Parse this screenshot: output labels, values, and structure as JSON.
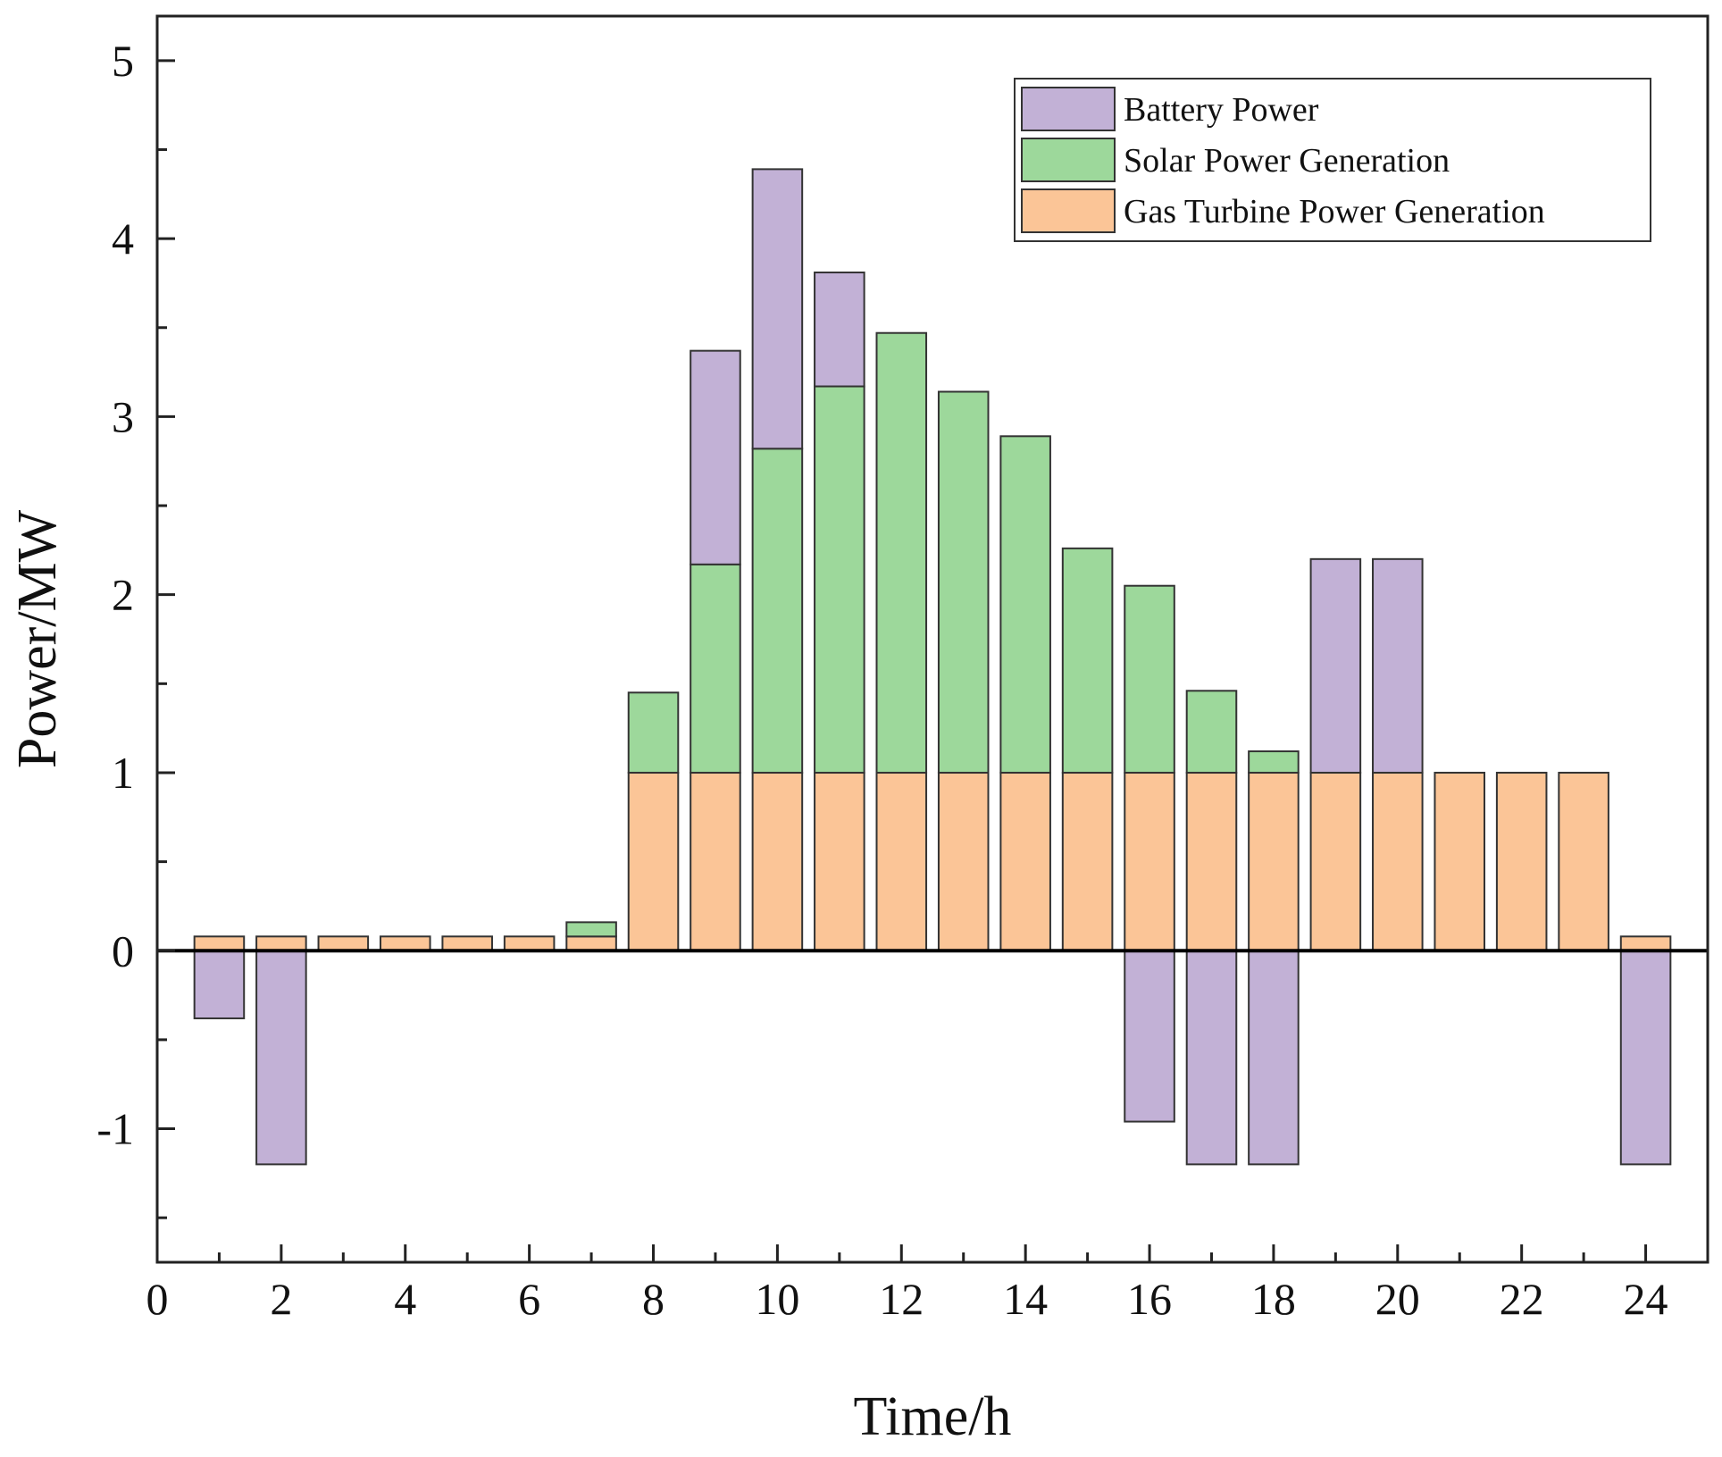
{
  "chart_data": {
    "type": "bar",
    "stacked": true,
    "x": [
      1,
      2,
      3,
      4,
      5,
      6,
      7,
      8,
      9,
      10,
      11,
      12,
      13,
      14,
      15,
      16,
      17,
      18,
      19,
      20,
      21,
      22,
      23,
      24
    ],
    "series": [
      {
        "name": "Gas Turbine Power Generation",
        "color": "#fbc597",
        "values": [
          0.08,
          0.08,
          0.08,
          0.08,
          0.08,
          0.08,
          0.08,
          1,
          1,
          1,
          1,
          1,
          1,
          1,
          1,
          1,
          1,
          1,
          1,
          1,
          1,
          1,
          1,
          0.08
        ]
      },
      {
        "name": "Solar Power Generation",
        "color": "#9dd89b",
        "values": [
          0,
          0,
          0,
          0,
          0,
          0,
          0.08,
          0.45,
          1.17,
          1.82,
          2.17,
          2.47,
          2.14,
          1.89,
          1.26,
          1.05,
          0.46,
          0.12,
          0,
          0,
          0,
          0,
          0,
          0
        ]
      },
      {
        "name": "Battery Power",
        "color": "#c2b1d6",
        "values": [
          -0.38,
          -1.2,
          0,
          0,
          0,
          0,
          0,
          0,
          1.2,
          1.57,
          0.64,
          0,
          0,
          0,
          0,
          -0.96,
          -1.2,
          -1.2,
          1.2,
          1.2,
          0,
          0,
          0,
          -1.2
        ]
      }
    ],
    "xlabel": "Time/h",
    "ylabel": "Power/MW",
    "xlim": [
      0,
      25
    ],
    "ylim": [
      -1.75,
      5.25
    ],
    "xticks": [
      "0",
      "2",
      "4",
      "6",
      "8",
      "10",
      "12",
      "14",
      "16",
      "18",
      "20",
      "22",
      "24"
    ],
    "yticks": [
      "-1",
      "0",
      "1",
      "2",
      "3",
      "4",
      "5"
    ],
    "legend_position": "top-right",
    "grid": false
  }
}
